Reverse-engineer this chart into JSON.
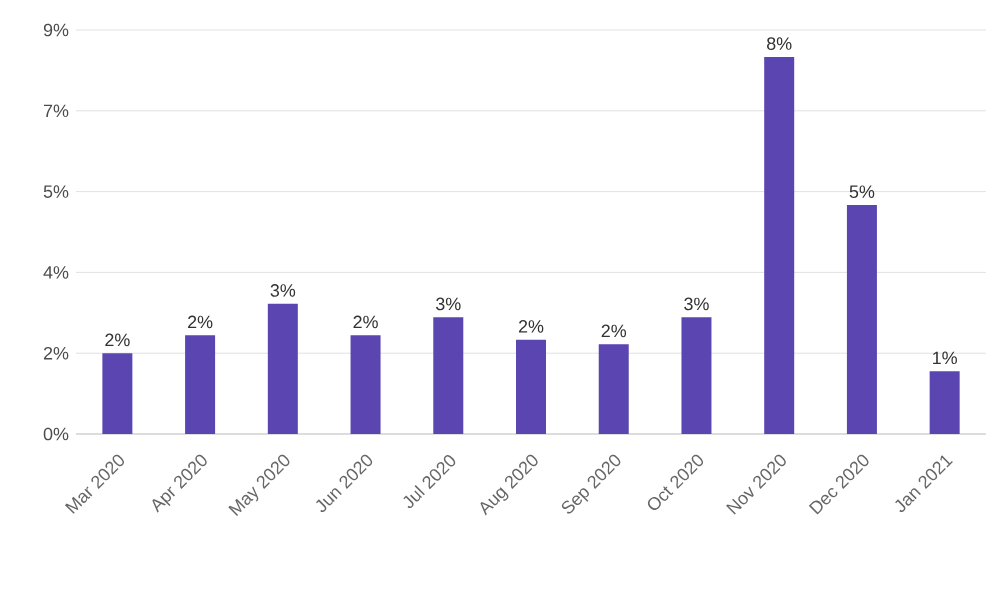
{
  "chart_data": {
    "type": "bar",
    "categories": [
      "Mar 2020",
      "Apr 2020",
      "May 2020",
      "Jun 2020",
      "Jul 2020",
      "Aug 2020",
      "Sep 2020",
      "Oct 2020",
      "Nov 2020",
      "Dec 2020",
      "Jan 2021"
    ],
    "values": [
      1.8,
      2.2,
      2.9,
      2.2,
      2.6,
      2.1,
      2.0,
      2.6,
      8.4,
      5.1,
      1.4
    ],
    "value_labels": [
      "2%",
      "2%",
      "3%",
      "2%",
      "3%",
      "2%",
      "2%",
      "3%",
      "8%",
      "5%",
      "1%"
    ],
    "color": "#5b45b0",
    "ylim": [
      0,
      9
    ],
    "yticks": [
      {
        "value": 0,
        "label": "0%"
      },
      {
        "value": 1.8,
        "label": "2%"
      },
      {
        "value": 3.6,
        "label": "4%"
      },
      {
        "value": 5.4,
        "label": "5%"
      },
      {
        "value": 7.2,
        "label": "7%"
      },
      {
        "value": 9,
        "label": "9%"
      }
    ],
    "grid": "y"
  }
}
